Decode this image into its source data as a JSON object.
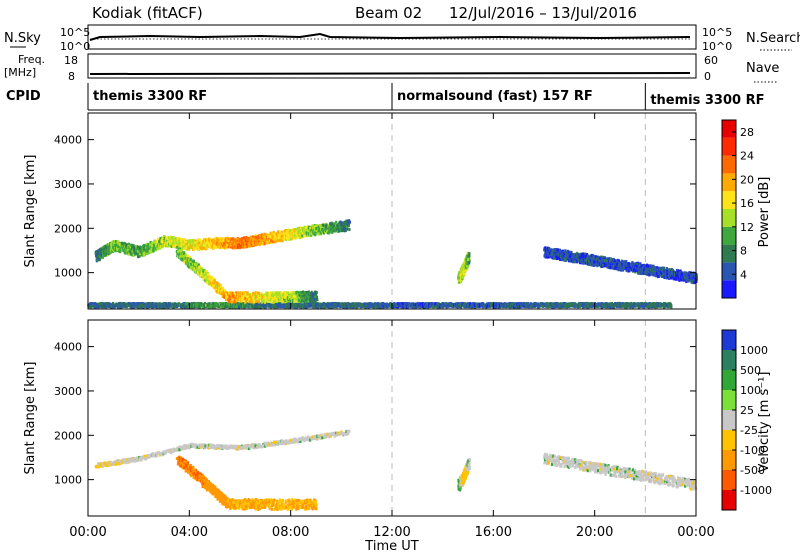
{
  "header": {
    "station": "Kodiak (fitACF)",
    "beam": "Beam 02",
    "date_range": "12/Jul/2016 – 13/Jul/2016"
  },
  "strips": {
    "nsky_label": "N.Sky",
    "nsky_ticks": [
      "10^5",
      "10^0"
    ],
    "nsearch_label": "N.Search",
    "nsearch_ticks": [
      "10^5",
      "10^0"
    ],
    "freq_label": "Freq.",
    "freq_unit": "[MHz]",
    "freq_ticks": [
      "18",
      "8"
    ],
    "nave_label": "Nave",
    "nave_ticks": [
      "60",
      "0"
    ],
    "cpid_label": "CPID",
    "cpid_segments": [
      {
        "label": "themis 3300 RF",
        "start": 0,
        "end": 12
      },
      {
        "label": "normalsound (fast) 157 RF",
        "start": 12,
        "end": 22
      },
      {
        "label": "themis 3300 RF",
        "start": 22,
        "end": 24
      }
    ]
  },
  "chart_data": [
    {
      "type": "heatmap",
      "xlabel": "Time UT",
      "ylabel": "Slant Range [km]",
      "xlim": [
        0,
        24
      ],
      "ylim": [
        180,
        4600
      ],
      "yticks": [
        "1000",
        "2000",
        "3000",
        "4000"
      ],
      "colorbar": {
        "label": "Power [dB]",
        "ticks": [
          "4",
          "8",
          "12",
          "16",
          "20",
          "24",
          "28"
        ],
        "range": [
          0,
          30
        ],
        "colors": [
          "#1a1aff",
          "#2a55b0",
          "#2f7a4f",
          "#3ea83e",
          "#a6e027",
          "#ffe41a",
          "#ffaa00",
          "#ff6a00",
          "#ff2a00",
          "#e80000"
        ]
      },
      "series": [
        {
          "y": [
            300,
            300,
            300,
            300,
            300,
            300,
            300,
            300,
            300,
            300,
            300,
            300,
            300,
            300,
            300,
            300,
            300,
            300,
            300,
            300,
            300,
            300,
            300,
            300
          ],
          "x": [
            0,
            1,
            2,
            3,
            4,
            5,
            6,
            7,
            8,
            9,
            10,
            11,
            12,
            13,
            14,
            15,
            16,
            17,
            18,
            19,
            20,
            21,
            22,
            23
          ],
          "values": [
            6,
            6,
            6,
            6,
            8,
            10,
            8,
            6,
            6,
            6,
            6,
            6,
            4,
            4,
            5,
            5,
            5,
            5,
            6,
            6,
            6,
            6,
            6,
            6
          ]
        },
        {
          "x": [
            0.3,
            1,
            2,
            3,
            4,
            5,
            6,
            7,
            8,
            9,
            10.3
          ],
          "y": [
            1400,
            1650,
            1500,
            1750,
            1650,
            1700,
            1700,
            1800,
            1900,
            2000,
            2100
          ],
          "values": [
            6,
            12,
            10,
            14,
            16,
            18,
            22,
            20,
            16,
            12,
            6
          ]
        },
        {
          "x": [
            3.5,
            4.5,
            5.5,
            7,
            8,
            9
          ],
          "y": [
            1500,
            1000,
            480,
            470,
            480,
            490
          ],
          "values": [
            12,
            14,
            20,
            16,
            14,
            6
          ]
        },
        {
          "x": [
            14.6,
            14.8,
            15.0
          ],
          "y": [
            900,
            1100,
            1400
          ],
          "values": [
            12,
            16,
            10
          ]
        },
        {
          "x": [
            18,
            19,
            20,
            21,
            22,
            23,
            24
          ],
          "y": [
            1500,
            1400,
            1300,
            1200,
            1100,
            1000,
            900
          ],
          "values": [
            4,
            4,
            4,
            4,
            4,
            4,
            4
          ]
        }
      ]
    },
    {
      "type": "heatmap",
      "xlabel": "Time UT",
      "ylabel": "Slant Range [km]",
      "xlim": [
        0,
        24
      ],
      "ylim": [
        180,
        4600
      ],
      "xticks": [
        "00:00",
        "04:00",
        "08:00",
        "12:00",
        "16:00",
        "20:00",
        "00:00"
      ],
      "yticks": [
        "1000",
        "2000",
        "3000",
        "4000"
      ],
      "colorbar": {
        "label": "Velocity [m s⁻¹]",
        "ticks": [
          "1000",
          "500",
          "100",
          "25",
          "-25",
          "-100",
          "-500",
          "-1000"
        ],
        "colors": [
          "#1e3ad6",
          "#2a8060",
          "#2fa838",
          "#7be03a",
          "#c8c8c8",
          "#ffc400",
          "#ff9900",
          "#ff5a00",
          "#e60000"
        ]
      },
      "series": [
        {
          "x": [
            0.3,
            2,
            4,
            6,
            8,
            10.3
          ],
          "y": [
            1350,
            1500,
            1800,
            1750,
            1900,
            2100
          ],
          "values": [
            -25,
            0,
            0,
            0,
            0,
            0
          ]
        },
        {
          "x": [
            3.5,
            4.5,
            5.5,
            7,
            9
          ],
          "y": [
            1500,
            1000,
            480,
            470,
            480
          ],
          "values": [
            -500,
            -500,
            -100,
            -100,
            -100
          ]
        },
        {
          "x": [
            14.6,
            14.8,
            15.0
          ],
          "y": [
            900,
            1100,
            1400
          ],
          "values": [
            100,
            -100,
            25
          ]
        },
        {
          "x": [
            18,
            20,
            22,
            24
          ],
          "y": [
            1500,
            1300,
            1100,
            900
          ],
          "values": [
            0,
            0,
            0,
            0
          ]
        }
      ]
    }
  ]
}
